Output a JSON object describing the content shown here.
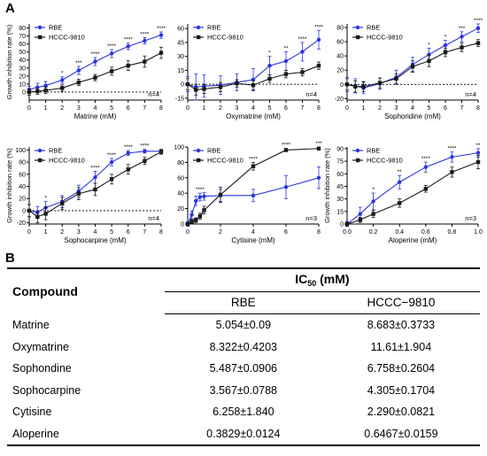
{
  "panel_a_label": "A",
  "panel_b_label": "B",
  "colors": {
    "rbe": "#2b35e0",
    "hccc": "#1a1a1a",
    "axis": "#000000"
  },
  "chart_data": [
    {
      "type": "line",
      "ylabel": "Growth inhibition rate (%)",
      "xlabel": "Matrine (mM)",
      "xlim": [
        0,
        8
      ],
      "ylim": [
        -10,
        85
      ],
      "xticks": [
        0,
        1,
        2,
        3,
        4,
        5,
        6,
        7,
        8
      ],
      "yticks": [
        0,
        10,
        20,
        30,
        40,
        50,
        60,
        70,
        80
      ],
      "annotation": "n=4",
      "legend": [
        "RBE",
        "HCCC-9810"
      ],
      "x": [
        0,
        0.5,
        1,
        2,
        3,
        4,
        5,
        6,
        7,
        8
      ],
      "series": [
        {
          "name": "RBE",
          "values": [
            3,
            6,
            8,
            15,
            27,
            38,
            48,
            57,
            64,
            71
          ],
          "err": [
            4,
            5,
            5,
            4,
            5,
            5,
            5,
            4,
            4,
            4
          ]
        },
        {
          "name": "HCCC-9810",
          "values": [
            0,
            1,
            2,
            5,
            12,
            18,
            26,
            33,
            38,
            49
          ],
          "err": [
            4,
            4,
            4,
            4,
            4,
            4,
            5,
            6,
            7,
            7
          ]
        }
      ],
      "sig": [
        "",
        "",
        "",
        "*",
        "***",
        "****",
        "****",
        "****",
        "****",
        "****"
      ]
    },
    {
      "type": "line",
      "ylabel": "",
      "xlabel": "Oxymatrine (mM)",
      "xlim": [
        0,
        8
      ],
      "ylim": [
        -17,
        65
      ],
      "xticks": [
        0,
        1,
        2,
        3,
        4,
        5,
        6,
        7,
        8
      ],
      "yticks": [
        -15,
        0,
        15,
        30,
        45,
        60
      ],
      "annotation": "n=4",
      "legend": [
        "RBE",
        "HCCC-9810"
      ],
      "x": [
        0,
        0.5,
        1,
        2,
        3,
        4,
        5,
        6,
        7,
        8
      ],
      "series": [
        {
          "name": "RBE",
          "values": [
            0,
            -3,
            -2,
            -1,
            2,
            5,
            20,
            25,
            35,
            48
          ],
          "err": [
            8,
            14,
            12,
            10,
            9,
            12,
            10,
            10,
            10,
            10
          ]
        },
        {
          "name": "HCCC-9810",
          "values": [
            0,
            -6,
            -5,
            -3,
            1,
            -1,
            6,
            11,
            13,
            20
          ],
          "err": [
            6,
            6,
            5,
            5,
            4,
            5,
            4,
            4,
            4,
            4
          ]
        }
      ],
      "sig": [
        "",
        "",
        "",
        "",
        "",
        "",
        "*",
        "**",
        "****",
        "****"
      ]
    },
    {
      "type": "line",
      "ylabel": "",
      "xlabel": "Sophoridine (mM)",
      "xlim": [
        0,
        8
      ],
      "ylim": [
        -22,
        85
      ],
      "xticks": [
        0,
        1,
        2,
        3,
        4,
        5,
        6,
        7,
        8
      ],
      "yticks": [
        -20,
        0,
        20,
        40,
        60,
        80
      ],
      "annotation": "n=4",
      "legend": [
        "RBE",
        "HCCC-9810"
      ],
      "x": [
        0,
        0.5,
        1,
        2,
        3,
        4,
        5,
        6,
        7,
        8
      ],
      "series": [
        {
          "name": "RBE",
          "values": [
            0,
            -2,
            -5,
            1,
            10,
            28,
            42,
            55,
            67,
            79
          ],
          "err": [
            10,
            10,
            8,
            8,
            10,
            10,
            9,
            7,
            7,
            6
          ]
        },
        {
          "name": "HCCC-9810",
          "values": [
            0,
            -3,
            -3,
            2,
            8,
            25,
            33,
            45,
            52,
            58
          ],
          "err": [
            8,
            8,
            7,
            7,
            7,
            8,
            8,
            6,
            6,
            5
          ]
        }
      ],
      "sig": [
        "",
        "",
        "",
        "",
        "",
        "",
        "*",
        "*",
        "***",
        "****"
      ]
    },
    {
      "type": "line",
      "ylabel": "Growth inhibition rate (%)",
      "xlabel": "Sophocarpine (mM)",
      "xlim": [
        0,
        8
      ],
      "ylim": [
        -22,
        105
      ],
      "xticks": [
        0,
        1,
        2,
        3,
        4,
        5,
        6,
        7,
        8
      ],
      "yticks": [
        -20,
        0,
        20,
        40,
        60,
        80,
        100
      ],
      "annotation": "n=4",
      "legend": [
        "RBE",
        "HCCC-9810"
      ],
      "x": [
        0,
        0.5,
        1,
        2,
        3,
        4,
        5,
        6,
        7,
        8
      ],
      "series": [
        {
          "name": "RBE",
          "values": [
            0,
            -3,
            5,
            15,
            32,
            55,
            80,
            95,
            98,
            98
          ],
          "err": [
            10,
            10,
            10,
            10,
            10,
            10,
            6,
            4,
            3,
            3
          ]
        },
        {
          "name": "HCCC-9810",
          "values": [
            0,
            -10,
            -5,
            12,
            28,
            35,
            52,
            68,
            82,
            97
          ],
          "err": [
            10,
            10,
            10,
            10,
            10,
            10,
            8,
            8,
            6,
            4
          ]
        }
      ],
      "sig": [
        "",
        "",
        "*",
        "",
        "",
        "****",
        "****",
        "****",
        "****",
        ""
      ]
    },
    {
      "type": "line",
      "ylabel": "",
      "xlabel": "Cytisine (mM)",
      "xlim": [
        0,
        8
      ],
      "ylim": [
        0,
        100
      ],
      "xticks": [
        0,
        2,
        4,
        6,
        8
      ],
      "yticks": [
        0,
        20,
        40,
        60,
        80,
        100
      ],
      "annotation": "n=3",
      "legend": [
        "RBE",
        "HCCC-9810"
      ],
      "x": [
        0,
        0.25,
        0.5,
        0.75,
        1,
        2,
        4,
        6,
        8
      ],
      "series": [
        {
          "name": "RBE",
          "values": [
            0,
            12,
            30,
            35,
            36,
            37,
            37,
            48,
            60
          ],
          "err": [
            3,
            5,
            6,
            5,
            5,
            8,
            8,
            15,
            14
          ]
        },
        {
          "name": "HCCC-9810",
          "values": [
            0,
            3,
            5,
            10,
            18,
            38,
            75,
            96,
            98
          ],
          "err": [
            2,
            3,
            3,
            4,
            5,
            10,
            5,
            2,
            2
          ]
        }
      ],
      "sig": [
        "",
        "",
        "",
        "****",
        "",
        "",
        "****",
        "****",
        "***"
      ]
    },
    {
      "type": "line",
      "ylabel": "Growth inhibition rate (%)",
      "xlabel": "Aloperine (mM)",
      "xlim": [
        0,
        1.0
      ],
      "ylim": [
        0,
        92
      ],
      "xticks": [
        "0.0",
        "0.2",
        "0.4",
        "0.6",
        "0.8",
        "1.0"
      ],
      "yticks": [
        0,
        15,
        30,
        45,
        60,
        75,
        90
      ],
      "annotation": "n=3",
      "legend": [
        "RBE",
        "HCCC-9810"
      ],
      "x": [
        0,
        0.1,
        0.2,
        0.4,
        0.6,
        0.8,
        1.0
      ],
      "series": [
        {
          "name": "RBE",
          "values": [
            0,
            12,
            27,
            50,
            68,
            80,
            85
          ],
          "err": [
            3,
            8,
            10,
            8,
            6,
            6,
            5
          ]
        },
        {
          "name": "HCCC-9810",
          "values": [
            0,
            5,
            12,
            25,
            42,
            62,
            74
          ],
          "err": [
            2,
            3,
            4,
            5,
            4,
            6,
            8
          ]
        }
      ],
      "sig": [
        "",
        "",
        "*",
        "**",
        "****",
        "****",
        "**"
      ]
    },
    {
      "type": "table",
      "header": {
        "compound": "Compound",
        "ic50_main": "IC",
        "ic50_sub": "50",
        "ic50_unit": " (mM)",
        "col1": "RBE",
        "col2": "HCCC−9810"
      },
      "rows": [
        {
          "name": "Matrine",
          "rbe": "5.054±0.09",
          "hccc": "8.683±0.3733"
        },
        {
          "name": "Oxymatrine",
          "rbe": "8.322±0.4203",
          "hccc": "11.61±1.904"
        },
        {
          "name": "Sophondine",
          "rbe": "5.487±0.0906",
          "hccc": "6.758±0.2604"
        },
        {
          "name": "Sophocarpine",
          "rbe": "3.567±0.0788",
          "hccc": "4.305±0.1704"
        },
        {
          "name": "Cytisine",
          "rbe": "6.258±1.840",
          "hccc": "2.290±0.0821"
        },
        {
          "name": "Aloperine",
          "rbe": "0.3829±0.0124",
          "hccc": "0.6467±0.0159"
        }
      ]
    }
  ]
}
